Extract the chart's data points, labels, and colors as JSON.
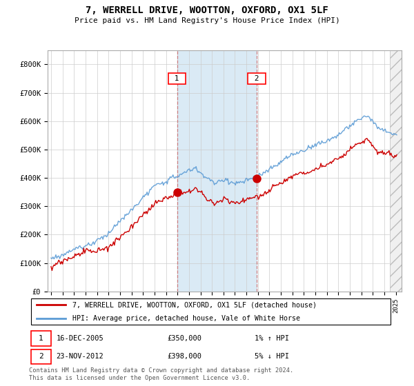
{
  "title": "7, WERRELL DRIVE, WOOTTON, OXFORD, OX1 5LF",
  "subtitle": "Price paid vs. HM Land Registry's House Price Index (HPI)",
  "ylim": [
    0,
    850000
  ],
  "yticks": [
    0,
    100000,
    200000,
    300000,
    400000,
    500000,
    600000,
    700000,
    800000
  ],
  "ytick_labels": [
    "£0",
    "£100K",
    "£200K",
    "£300K",
    "£400K",
    "£500K",
    "£600K",
    "£700K",
    "£800K"
  ],
  "sale1_x": 2005.96,
  "sale1_y": 350000,
  "sale2_x": 2012.9,
  "sale2_y": 398000,
  "hpi_color": "#5b9bd5",
  "price_color": "#cc0000",
  "highlight_color": "#daeaf5",
  "legend_label1": "7, WERRELL DRIVE, WOOTTON, OXFORD, OX1 5LF (detached house)",
  "legend_label2": "HPI: Average price, detached house, Vale of White Horse",
  "footnote": "Contains HM Land Registry data © Crown copyright and database right 2024.\nThis data is licensed under the Open Government Licence v3.0.",
  "xlim_left": 1994.7,
  "xlim_right": 2025.5,
  "hatch_start": 2024.5
}
